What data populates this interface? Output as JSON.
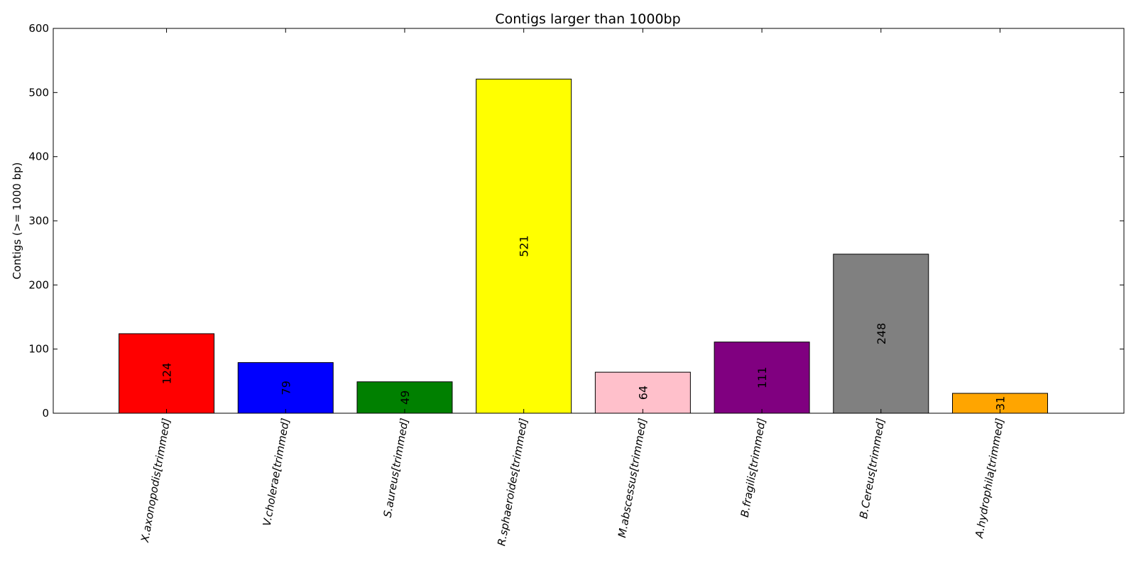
{
  "chart_data": {
    "type": "bar",
    "title": "Contigs larger than 1000bp",
    "xlabel": "",
    "ylabel": "Contigs (>= 1000 bp)",
    "ylim": [
      0,
      600
    ],
    "yticks": [
      0,
      100,
      200,
      300,
      400,
      500,
      600
    ],
    "categories": [
      "X.axonopodis[trimmed]",
      "V.cholerae[trimmed]",
      "S.aureus[trimmed]",
      "R.sphaeroides[trimmed]",
      "M.abscessus[trimmed]",
      "B.fragilis[trimmed]",
      "B.Cereus[trimmed]",
      "A.hydrophila[trimmed]"
    ],
    "values": [
      124,
      79,
      49,
      521,
      64,
      111,
      248,
      31
    ],
    "colors": [
      "#ff0000",
      "#0000ff",
      "#008000",
      "#ffff00",
      "#ffc0cb",
      "#800080",
      "#808080",
      "#ffa500"
    ],
    "data_labels": [
      "124",
      "79",
      "49",
      "521",
      "64",
      "111",
      "248",
      "31"
    ],
    "grid": false,
    "legend": "none"
  }
}
